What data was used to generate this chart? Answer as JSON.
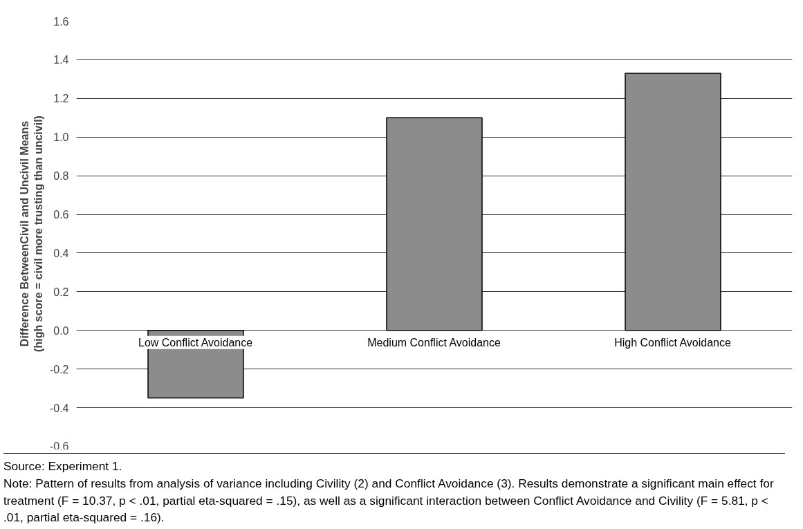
{
  "chart_data": {
    "type": "bar",
    "ylabel": "Difference BetweenCivil and Uncivil Means\n(high score = civil more trusting than uncivil)",
    "categories": [
      "Low Conflict Avoidance",
      "Medium Conflict Avoidance",
      "High Conflict Avoidance"
    ],
    "values": [
      -0.35,
      1.1,
      1.33
    ],
    "color": "#8c8c8c",
    "ylim": [
      -0.6,
      1.6
    ],
    "yticks": [
      {
        "value": -0.6,
        "label": "-0.6"
      },
      {
        "value": -0.4,
        "label": "-0.4"
      },
      {
        "value": -0.2,
        "label": "-0.2"
      },
      {
        "value": 0,
        "label": "0.0"
      },
      {
        "value": 0.2,
        "label": "0.2"
      },
      {
        "value": 0.4,
        "label": "0.4"
      },
      {
        "value": 0.6,
        "label": "0.6"
      },
      {
        "value": 0.8,
        "label": "0.8"
      },
      {
        "value": 1.0,
        "label": "1.0"
      },
      {
        "value": 1.2,
        "label": "1.2"
      },
      {
        "value": 1.4,
        "label": "1.4"
      },
      {
        "value": 1.6,
        "label": "1.6"
      }
    ],
    "grid": "y",
    "annotations": [
      "Source: Experiment 1.",
      "Note: Pattern of results from analysis of variance including Civility (2) and Conflict Avoidance (3). Results demonstrate a significant main effect for treatment (F = 10.37, p < .01, partial eta-squared = .15), as well as a significant interaction between Conflict Avoidance and Civility (F = 5.81, p < .01, partial eta-squared = .16)."
    ]
  }
}
